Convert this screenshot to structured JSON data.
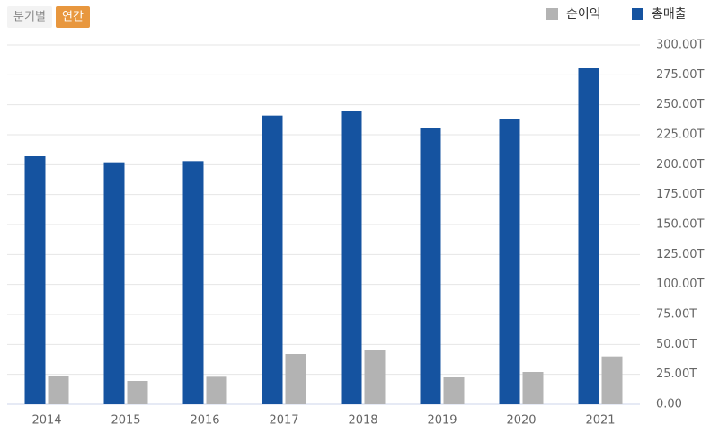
{
  "tabs": [
    "분기별",
    "연간"
  ],
  "chart_data": {
    "type": "bar",
    "categories": [
      "2014",
      "2015",
      "2016",
      "2017",
      "2018",
      "2019",
      "2020",
      "2021"
    ],
    "series": [
      {
        "name": "순이익",
        "color": "#b3b3b3",
        "values": [
          24,
          19.5,
          23,
          42,
          45,
          22.5,
          27,
          40
        ]
      },
      {
        "name": "총매출",
        "color": "#1553a0",
        "values": [
          207,
          202,
          203,
          241,
          244.5,
          231,
          238,
          280.5
        ]
      }
    ],
    "ylim": [
      0,
      300
    ],
    "yticks": [
      {
        "value": 0,
        "label": "0.00"
      },
      {
        "value": 25,
        "label": "25.00T"
      },
      {
        "value": 50,
        "label": "50.00T"
      },
      {
        "value": 75,
        "label": "75.00T"
      },
      {
        "value": 100,
        "label": "100.00T"
      },
      {
        "value": 125,
        "label": "125.00T"
      },
      {
        "value": 150,
        "label": "150.00T"
      },
      {
        "value": 175,
        "label": "175.00T"
      },
      {
        "value": 200,
        "label": "200.00T"
      },
      {
        "value": 225,
        "label": "225.00T"
      },
      {
        "value": 250,
        "label": "250.00T"
      },
      {
        "value": 275,
        "label": "275.00T"
      },
      {
        "value": 300,
        "label": "300.00T"
      }
    ],
    "grid": true,
    "legend": "top-right"
  }
}
